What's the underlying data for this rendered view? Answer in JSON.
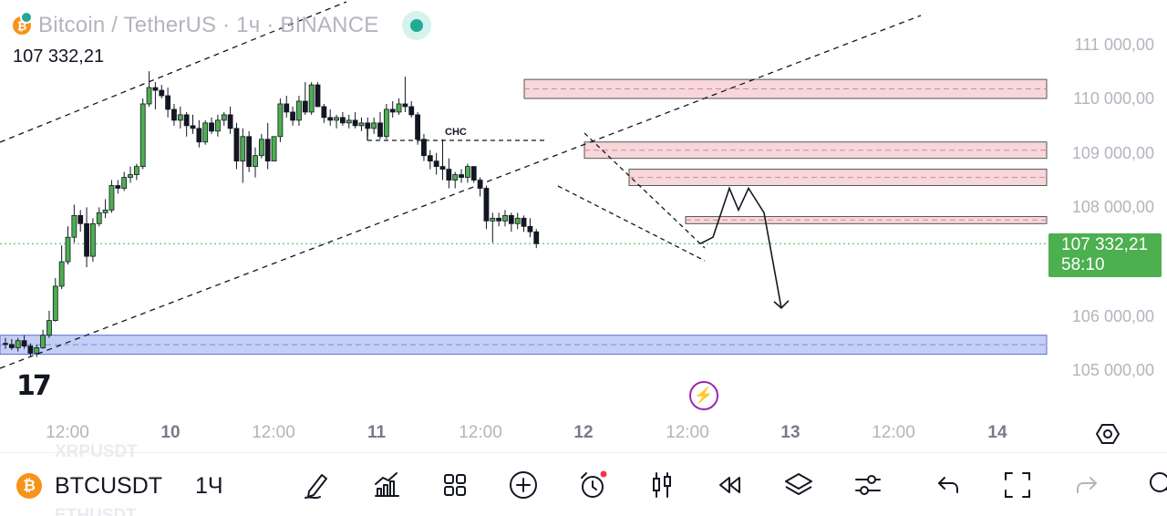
{
  "header": {
    "title": "Bitcoin / TetherUS · 1ч · BINANCE",
    "last_price": "107 332,21",
    "live_color": "#22ab94"
  },
  "price_axis": {
    "labels": [
      "111 000,00",
      "110 000,00",
      "109 000,00",
      "108 000,00",
      "106 000,00",
      "105 000,00"
    ],
    "current_price": "107 332,21",
    "countdown": "58:10",
    "current_color": "#4caf50"
  },
  "time_axis": {
    "labels": [
      "12:00",
      "10",
      "12:00",
      "11",
      "12:00",
      "12",
      "12:00",
      "13",
      "12:00",
      "14"
    ]
  },
  "annotations": {
    "choch_label": "CHC"
  },
  "icons": {
    "tv_logo": "17",
    "bolt": "⚡",
    "btc_symbol": "₿"
  },
  "bottom_toolbar": {
    "symbol": "BTCUSDT",
    "interval": "1Ч",
    "ghost_above": "XRPUSDT",
    "ghost_below": "ETHUSDT",
    "tools": [
      "drawing-pen-icon",
      "indicators-icon",
      "layouts-grid-icon",
      "add-icon",
      "alert-clock-icon",
      "candles-icon",
      "replay-icon",
      "layers-icon",
      "settings-sliders-icon",
      "undo-icon",
      "fullscreen-icon",
      "redo-icon",
      "search-icon"
    ]
  },
  "colors": {
    "bull": "#4caf50",
    "bear": "#131722",
    "supply_zone": "#f8d7da",
    "demand_zone": "#c5cef5"
  },
  "chart_data": {
    "type": "candlestick",
    "symbol": "BTCUSDT",
    "exchange": "BINANCE",
    "interval": "1h",
    "ylim": [
      104700,
      111500
    ],
    "y_ticks": [
      111000,
      110000,
      109000,
      108000,
      106000,
      105000
    ],
    "current_price": 107332.21,
    "zones": [
      {
        "kind": "supply",
        "low": 110000,
        "high": 110350
      },
      {
        "kind": "supply",
        "low": 108900,
        "high": 109200
      },
      {
        "kind": "supply",
        "low": 108400,
        "high": 108700
      },
      {
        "kind": "supply",
        "low": 107700,
        "high": 107830
      },
      {
        "kind": "demand",
        "low": 105300,
        "high": 105650
      }
    ],
    "candles": [
      [
        105500,
        105600,
        105400,
        105480
      ],
      [
        105480,
        105580,
        105380,
        105420
      ],
      [
        105420,
        105600,
        105350,
        105550
      ],
      [
        105550,
        105650,
        105400,
        105450
      ],
      [
        105450,
        105500,
        105250,
        105320
      ],
      [
        105320,
        105480,
        105250,
        105420
      ],
      [
        105420,
        105750,
        105400,
        105650
      ],
      [
        105650,
        106100,
        105600,
        105920
      ],
      [
        105920,
        106700,
        105900,
        106550
      ],
      [
        106550,
        107300,
        106500,
        107000
      ],
      [
        107000,
        107650,
        106950,
        107450
      ],
      [
        107450,
        108050,
        107350,
        107850
      ],
      [
        107850,
        107950,
        107550,
        107700
      ],
      [
        107700,
        108000,
        106900,
        107100
      ],
      [
        107100,
        107800,
        107000,
        107700
      ],
      [
        107700,
        108000,
        107650,
        107900
      ],
      [
        107900,
        108150,
        107800,
        107950
      ],
      [
        107950,
        108500,
        107900,
        108400
      ],
      [
        108400,
        108500,
        108250,
        108350
      ],
      [
        108350,
        108650,
        108300,
        108550
      ],
      [
        108550,
        108750,
        108450,
        108600
      ],
      [
        108600,
        108800,
        108500,
        108750
      ],
      [
        108750,
        110000,
        108700,
        109900
      ],
      [
        109900,
        110500,
        109850,
        110200
      ],
      [
        110200,
        110300,
        109800,
        110150
      ],
      [
        110150,
        110250,
        110000,
        110050
      ],
      [
        110050,
        110200,
        109650,
        109800
      ],
      [
        109800,
        109900,
        109500,
        109600
      ],
      [
        109600,
        109850,
        109450,
        109700
      ],
      [
        109700,
        109750,
        109300,
        109500
      ],
      [
        109500,
        109700,
        109350,
        109450
      ],
      [
        109450,
        109600,
        109100,
        109200
      ],
      [
        109200,
        109600,
        109150,
        109550
      ],
      [
        109550,
        109650,
        109350,
        109400
      ],
      [
        109400,
        109700,
        109300,
        109600
      ],
      [
        109600,
        109750,
        109500,
        109700
      ],
      [
        109700,
        109850,
        109350,
        109450
      ],
      [
        109450,
        109550,
        108700,
        108850
      ],
      [
        108850,
        109450,
        108450,
        109300
      ],
      [
        109300,
        109400,
        108650,
        108750
      ],
      [
        108750,
        109100,
        108550,
        108950
      ],
      [
        108950,
        109350,
        108900,
        109250
      ],
      [
        109250,
        109550,
        108700,
        108850
      ],
      [
        108850,
        109300,
        108850,
        109300
      ],
      [
        109300,
        110000,
        109200,
        109900
      ],
      [
        109900,
        110050,
        109650,
        109750
      ],
      [
        109750,
        109850,
        109500,
        109600
      ],
      [
        109600,
        110050,
        109500,
        109950
      ],
      [
        109950,
        110300,
        109700,
        109750
      ],
      [
        109750,
        110300,
        109700,
        110250
      ],
      [
        110250,
        110300,
        109900,
        109850
      ],
      [
        109850,
        109900,
        109550,
        109650
      ],
      [
        109650,
        109800,
        109500,
        109600
      ],
      [
        109600,
        109700,
        109450,
        109650
      ],
      [
        109650,
        109750,
        109500,
        109550
      ],
      [
        109550,
        109700,
        109450,
        109600
      ],
      [
        109600,
        109750,
        109450,
        109500
      ],
      [
        109500,
        109650,
        109400,
        109550
      ],
      [
        109550,
        109650,
        109300,
        109450
      ],
      [
        109450,
        109650,
        109350,
        109550
      ],
      [
        109550,
        109750,
        109250,
        109300
      ],
      [
        109300,
        109900,
        109250,
        109800
      ],
      [
        109800,
        109950,
        109650,
        109750
      ],
      [
        109750,
        110000,
        109700,
        109900
      ],
      [
        109900,
        110400,
        109750,
        109850
      ],
      [
        109850,
        109950,
        109650,
        109700
      ],
      [
        109700,
        109750,
        109150,
        109250
      ],
      [
        109250,
        109350,
        108850,
        108950
      ],
      [
        108950,
        109050,
        108700,
        108850
      ],
      [
        108850,
        109000,
        108600,
        108750
      ],
      [
        108750,
        109250,
        108500,
        108700
      ],
      [
        108700,
        108900,
        108350,
        108500
      ],
      [
        108500,
        108650,
        108350,
        108600
      ],
      [
        108600,
        108700,
        108450,
        108550
      ],
      [
        108550,
        108800,
        108450,
        108750
      ],
      [
        108750,
        108750,
        108450,
        108500
      ],
      [
        108500,
        108550,
        108200,
        108350
      ],
      [
        108350,
        108400,
        107600,
        107750
      ],
      [
        107750,
        107900,
        107350,
        107800
      ],
      [
        107800,
        107900,
        107650,
        107750
      ],
      [
        107750,
        107950,
        107650,
        107850
      ],
      [
        107850,
        107900,
        107550,
        107700
      ],
      [
        107700,
        107900,
        107600,
        107800
      ],
      [
        107800,
        107850,
        107550,
        107650
      ],
      [
        107650,
        107800,
        107450,
        107550
      ],
      [
        107550,
        107600,
        107250,
        107332
      ]
    ],
    "projection": [
      [
        107332,
        107450
      ],
      [
        107850,
        108350
      ],
      [
        108000,
        107950
      ],
      [
        108350,
        108350
      ],
      [
        108500,
        107900
      ],
      [
        108000,
        106150
      ]
    ]
  }
}
